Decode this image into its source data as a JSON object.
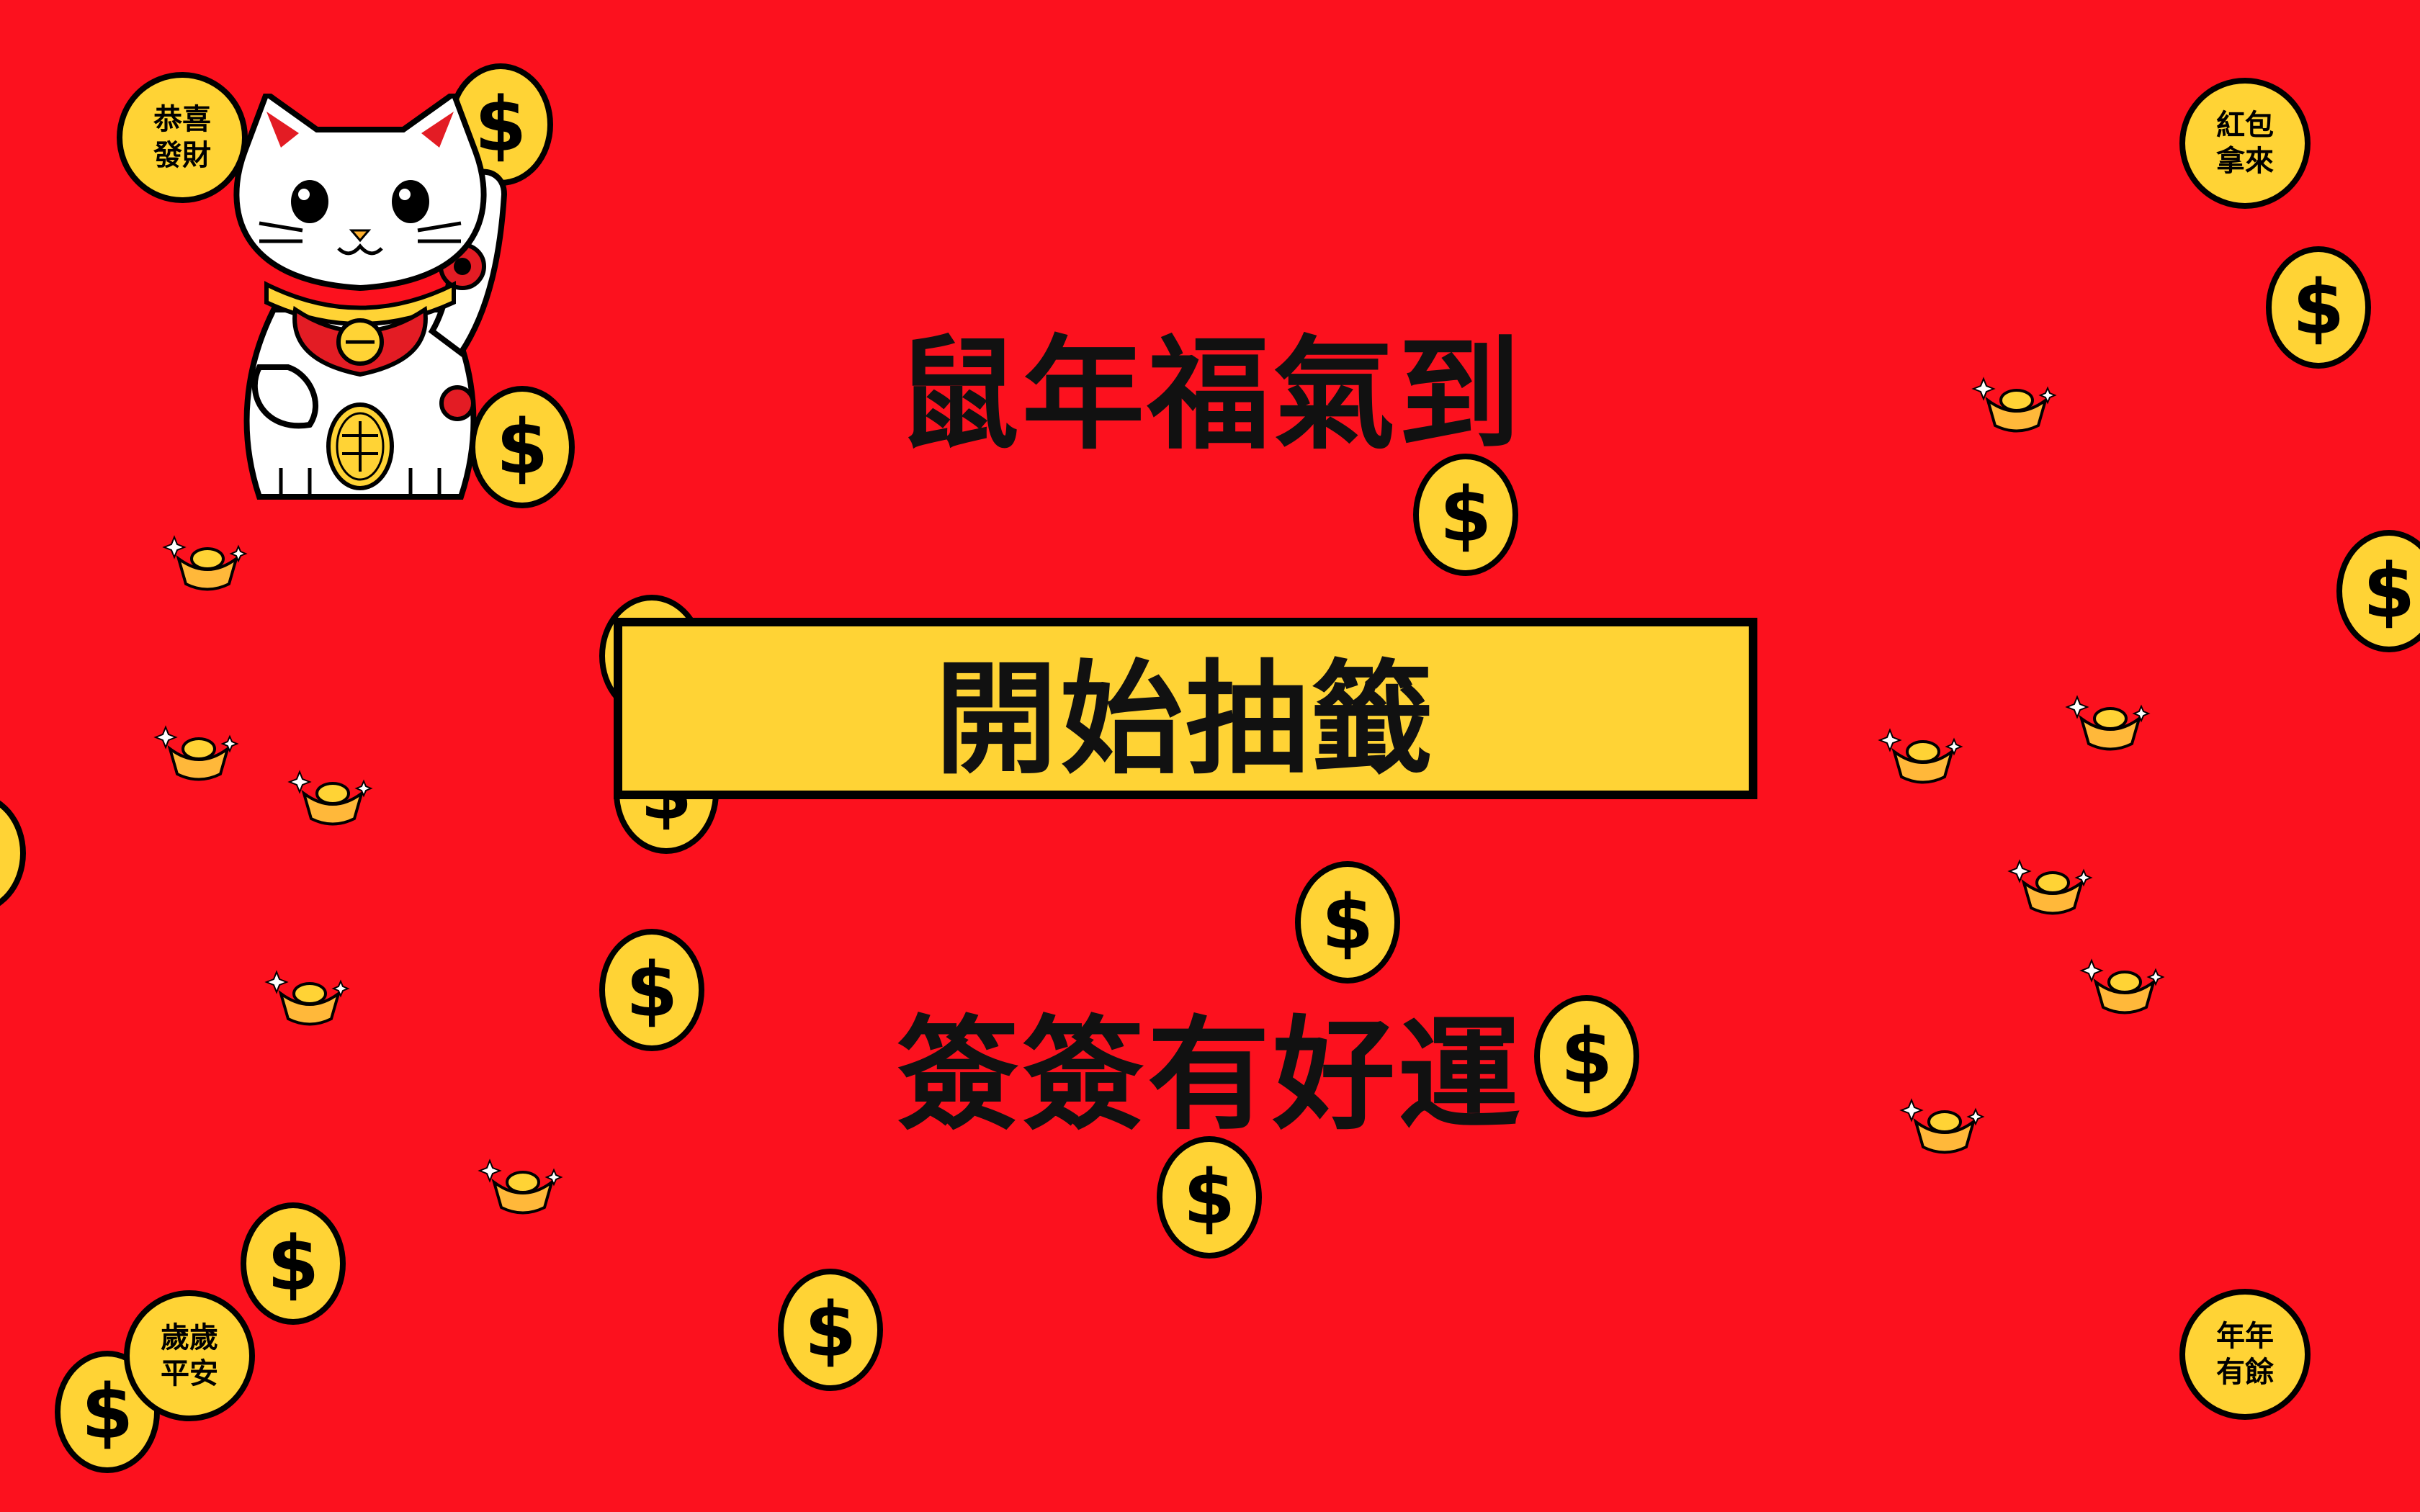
{
  "title": "鼠年福氣到",
  "draw_button_label": "開始抽籤",
  "subtitle": "簽簽有好運",
  "coin_symbol": "$",
  "badges": {
    "top_left": "恭喜\n發財",
    "top_right": "紅包\n拿來",
    "bottom_left": "歲歲\n平安",
    "bottom_right": "年年\n有餘"
  },
  "colors": {
    "background": "#fc111e",
    "coin": "#ffd335",
    "button": "#ffd335",
    "text": "#111111"
  }
}
